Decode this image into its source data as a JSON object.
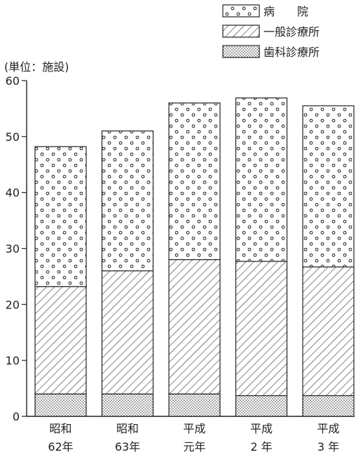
{
  "chart_data": {
    "type": "bar",
    "stacked": true,
    "unit_label": "(単位：施設)",
    "categories": [
      [
        "昭和",
        "62年"
      ],
      [
        "昭和",
        "63年"
      ],
      [
        "平成",
        "元年"
      ],
      [
        "平成",
        "2 年"
      ],
      [
        "平成",
        "3 年"
      ]
    ],
    "series": [
      {
        "name": "歯科診療所",
        "pattern": "dots",
        "values": [
          4,
          4,
          4,
          3.7,
          3.7
        ]
      },
      {
        "name": "一般診療所",
        "pattern": "hatch",
        "values": [
          19.2,
          22,
          24,
          24,
          23
        ]
      },
      {
        "name": "病　　院",
        "pattern": "circles",
        "values": [
          25,
          25,
          28,
          29.2,
          28.8
        ]
      }
    ],
    "legend_order": [
      "病　　院",
      "一般診療所",
      "歯科診療所"
    ],
    "ylim": [
      0,
      60
    ],
    "yticks": [
      0,
      10,
      20,
      30,
      40,
      50,
      60
    ],
    "legend_position": "top-right",
    "grid": false,
    "colors": {
      "ink": "#222222",
      "background": "#ffffff"
    }
  }
}
